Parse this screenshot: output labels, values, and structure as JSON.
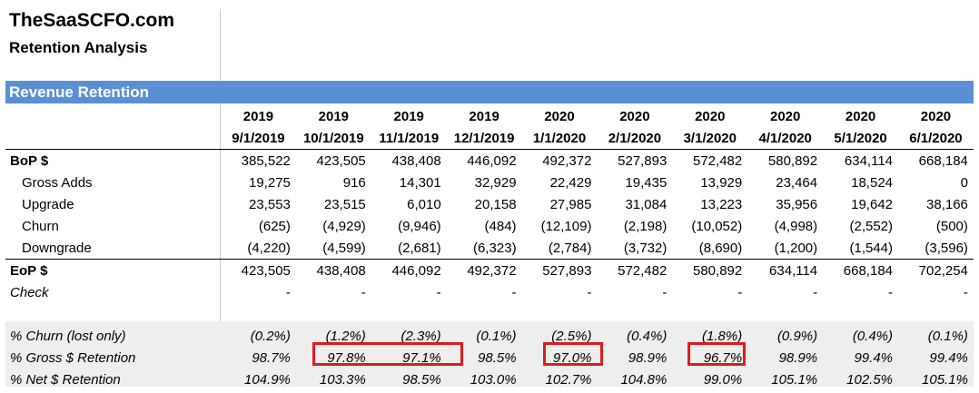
{
  "header": {
    "brand": "TheSaaSCFO.com",
    "subtitle": "Retention Analysis"
  },
  "section": {
    "title": "Revenue Retention",
    "band_color": "#5a8fd4"
  },
  "columns": {
    "years": [
      "2019",
      "2019",
      "2019",
      "2019",
      "2020",
      "2020",
      "2020",
      "2020",
      "2020",
      "2020"
    ],
    "dates": [
      "9/1/2019",
      "10/1/2019",
      "11/1/2019",
      "12/1/2019",
      "1/1/2020",
      "2/1/2020",
      "3/1/2020",
      "4/1/2020",
      "5/1/2020",
      "6/1/2020"
    ]
  },
  "rows": {
    "bop": {
      "label": "BoP $",
      "values": [
        "385,522",
        "423,505",
        "438,408",
        "446,092",
        "492,372",
        "527,893",
        "572,482",
        "580,892",
        "634,114",
        "668,184"
      ]
    },
    "gross_adds": {
      "label": "Gross Adds",
      "values": [
        "19,275",
        "916",
        "14,301",
        "32,929",
        "22,429",
        "19,435",
        "13,929",
        "23,464",
        "18,524",
        "0"
      ]
    },
    "upgrade": {
      "label": "Upgrade",
      "values": [
        "23,553",
        "23,515",
        "6,010",
        "20,158",
        "27,985",
        "31,084",
        "13,223",
        "35,956",
        "19,642",
        "38,166"
      ]
    },
    "churn": {
      "label": "Churn",
      "values": [
        "(625)",
        "(4,929)",
        "(9,946)",
        "(484)",
        "(12,109)",
        "(2,198)",
        "(10,052)",
        "(4,998)",
        "(2,552)",
        "(500)"
      ]
    },
    "downgrade": {
      "label": "Downgrade",
      "values": [
        "(4,220)",
        "(4,599)",
        "(2,681)",
        "(6,323)",
        "(2,784)",
        "(3,732)",
        "(8,690)",
        "(1,200)",
        "(1,544)",
        "(3,596)"
      ]
    },
    "eop": {
      "label": "EoP $",
      "values": [
        "423,505",
        "438,408",
        "446,092",
        "492,372",
        "527,893",
        "572,482",
        "580,892",
        "634,114",
        "668,184",
        "702,254"
      ]
    },
    "check": {
      "label": "Check",
      "values": [
        "-",
        "-",
        "-",
        "-",
        "-",
        "-",
        "-",
        "-",
        "-",
        "-"
      ]
    },
    "pct_churn": {
      "label": "% Churn (lost only)",
      "values": [
        "(0.2%)",
        "(1.2%)",
        "(2.3%)",
        "(0.1%)",
        "(2.5%)",
        "(0.4%)",
        "(1.8%)",
        "(0.9%)",
        "(0.4%)",
        "(0.1%)"
      ]
    },
    "pct_gross": {
      "label": "% Gross $ Retention",
      "values": [
        "98.7%",
        "97.8%",
        "97.1%",
        "98.5%",
        "97.0%",
        "98.9%",
        "96.7%",
        "98.9%",
        "99.4%",
        "99.4%"
      ]
    },
    "pct_net": {
      "label": "% Net $ Retention",
      "values": [
        "104.9%",
        "103.3%",
        "98.5%",
        "103.0%",
        "102.7%",
        "104.8%",
        "99.0%",
        "105.1%",
        "102.5%",
        "105.1%"
      ]
    }
  },
  "highlight_color": "#e01b1b"
}
